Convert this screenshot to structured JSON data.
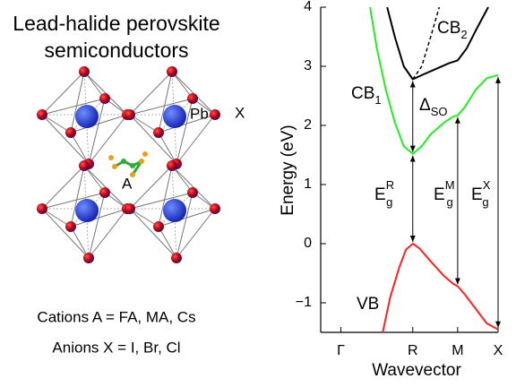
{
  "illustration": {
    "title_lines": [
      "Lead-halide perovskite",
      "semiconductors"
    ],
    "atom_labels": [
      "Pb",
      "X",
      "A"
    ],
    "notes": [
      "Cations A = FA, MA, Cs",
      "Anions X = I, Br, Cl"
    ]
  },
  "chart_data": {
    "type": "line",
    "xlabel": "Wavevector",
    "ylabel": "Energy (eV)",
    "xlim": [
      -0.45,
      3.5
    ],
    "ylim": [
      -1.5,
      4
    ],
    "xticks": [
      {
        "value": 0,
        "label": "Γ"
      },
      {
        "value": 1.6,
        "label": "R"
      },
      {
        "value": 2.6,
        "label": "M"
      },
      {
        "value": 3.5,
        "label": "X"
      }
    ],
    "yticks": [
      {
        "value": -1,
        "label": "−1"
      },
      0,
      1,
      2,
      3,
      4
    ],
    "series": [
      {
        "color": "#ff2020",
        "x": [
          0.93,
          1.1,
          1.3,
          1.45,
          1.6,
          1.75,
          2.0,
          2.3,
          2.5,
          2.6,
          2.75,
          3.0,
          3.25,
          3.5
        ],
        "values": [
          -1.5,
          -0.9,
          -0.4,
          -0.1,
          0,
          -0.08,
          -0.3,
          -0.55,
          -0.68,
          -0.72,
          -0.85,
          -1.1,
          -1.35,
          -1.45
        ]
      },
      {
        "color": "#22ee22",
        "x": [
          0.65,
          0.8,
          1.0,
          1.2,
          1.4,
          1.6,
          1.8,
          2.0,
          2.3,
          2.5,
          2.6,
          2.75,
          3.0,
          3.25,
          3.5
        ],
        "values": [
          4,
          3.3,
          2.6,
          2.05,
          1.65,
          1.52,
          1.65,
          1.85,
          2.05,
          2.15,
          2.17,
          2.3,
          2.6,
          2.8,
          2.85
        ]
      },
      {
        "color": "#000000",
        "x": [
          1.03,
          1.2,
          1.4,
          1.6,
          1.8,
          2.1,
          2.4,
          2.6,
          2.8,
          3.0,
          3.28
        ],
        "values": [
          4,
          3.5,
          3.0,
          2.78,
          2.85,
          2.95,
          3.05,
          3.1,
          3.3,
          3.6,
          4
        ]
      },
      {
        "color": "#000000",
        "dashed": true,
        "x": [
          1.6,
          1.8,
          2.0,
          2.19
        ],
        "values": [
          2.78,
          3.0,
          3.5,
          4
        ]
      }
    ],
    "annotations": [
      {
        "text": "CB",
        "sub": "2"
      },
      {
        "text": "CB",
        "sub": "1"
      },
      {
        "text": "Δ",
        "sub": "SO"
      },
      {
        "text": "E",
        "sub": "g",
        "sup": "R"
      },
      {
        "text": "E",
        "sub": "g",
        "sup": "M"
      },
      {
        "text": "E",
        "sub": "g",
        "sup": "X"
      },
      {
        "text": "VB"
      }
    ]
  }
}
